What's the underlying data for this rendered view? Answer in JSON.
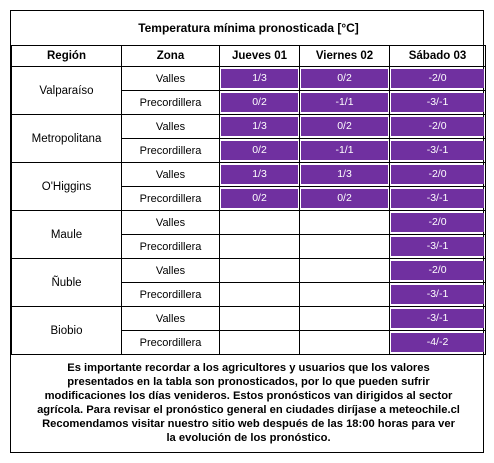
{
  "title": "Temperatura mínima pronosticada [°C]",
  "header": {
    "columns": [
      "Región",
      "Zona",
      "Jueves 01",
      "Viernes 02",
      "Sábado 03"
    ]
  },
  "regions": [
    {
      "name": "Valparaíso",
      "zones": [
        {
          "zone": "Valles",
          "values": [
            "1/3",
            "0/2",
            "-2/0"
          ]
        },
        {
          "zone": "Precordillera",
          "values": [
            "0/2",
            "-1/1",
            "-3/-1"
          ]
        }
      ]
    },
    {
      "name": "Metropolitana",
      "zones": [
        {
          "zone": "Valles",
          "values": [
            "1/3",
            "0/2",
            "-2/0"
          ]
        },
        {
          "zone": "Precordillera",
          "values": [
            "0/2",
            "-1/1",
            "-3/-1"
          ]
        }
      ]
    },
    {
      "name": "O'Higgins",
      "zones": [
        {
          "zone": "Valles",
          "values": [
            "1/3",
            "1/3",
            "-2/0"
          ]
        },
        {
          "zone": "Precordillera",
          "values": [
            "0/2",
            "0/2",
            "-3/-1"
          ]
        }
      ]
    },
    {
      "name": "Maule",
      "zones": [
        {
          "zone": "Valles",
          "values": [
            null,
            null,
            "-2/0"
          ]
        },
        {
          "zone": "Precordillera",
          "values": [
            null,
            null,
            "-3/-1"
          ]
        }
      ]
    },
    {
      "name": "Ñuble",
      "zones": [
        {
          "zone": "Valles",
          "values": [
            null,
            null,
            "-2/0"
          ]
        },
        {
          "zone": "Precordillera",
          "values": [
            null,
            null,
            "-3/-1"
          ]
        }
      ]
    },
    {
      "name": "Biobio",
      "zones": [
        {
          "zone": "Valles",
          "values": [
            null,
            null,
            "-3/-1"
          ]
        },
        {
          "zone": "Precordillera",
          "values": [
            null,
            null,
            "-4/-2"
          ]
        }
      ]
    }
  ],
  "note": [
    "Es importante recordar a los agricultores y usuarios que los valores",
    "presentados en la tabla son pronosticados, por lo que pueden sufrir",
    "modificaciones los días venideros. Estos pronósticos van dirigidos al sector",
    "agrícola. Para revisar el pronóstico general en ciudades diríjase a meteochile.cl",
    "Recomendamos visitar nuestro sitio web después de las 18:00 horas para ver",
    "la evolución de los pronóstico."
  ]
}
